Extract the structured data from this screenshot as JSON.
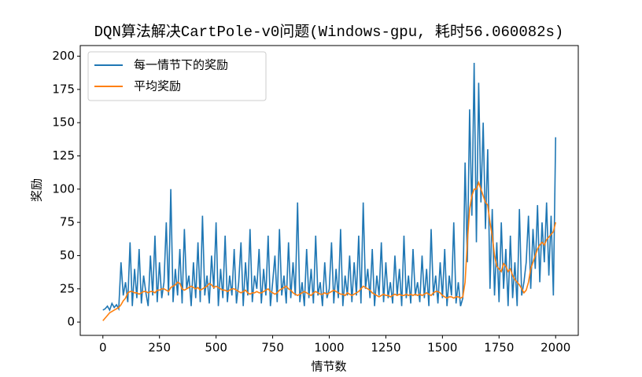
{
  "chart_data": {
    "type": "line",
    "title": "DQN算法解决CartPole-v0问题(Windows-gpu, 耗时56.060082s)",
    "xlabel": "情节数",
    "ylabel": "奖励",
    "x": [
      0,
      10,
      20,
      30,
      40,
      50,
      60,
      70,
      80,
      90,
      100,
      110,
      120,
      130,
      140,
      150,
      160,
      170,
      180,
      190,
      200,
      210,
      220,
      230,
      240,
      250,
      260,
      270,
      280,
      290,
      300,
      310,
      320,
      330,
      340,
      350,
      360,
      370,
      380,
      390,
      400,
      410,
      420,
      430,
      440,
      450,
      460,
      470,
      480,
      490,
      500,
      510,
      520,
      530,
      540,
      550,
      560,
      570,
      580,
      590,
      600,
      610,
      620,
      630,
      640,
      650,
      660,
      670,
      680,
      690,
      700,
      710,
      720,
      730,
      740,
      750,
      760,
      770,
      780,
      790,
      800,
      810,
      820,
      830,
      840,
      850,
      860,
      870,
      880,
      890,
      900,
      910,
      920,
      930,
      940,
      950,
      960,
      970,
      980,
      990,
      1000,
      1010,
      1020,
      1030,
      1040,
      1050,
      1060,
      1070,
      1080,
      1090,
      1100,
      1110,
      1120,
      1130,
      1140,
      1150,
      1160,
      1170,
      1180,
      1190,
      1200,
      1210,
      1220,
      1230,
      1240,
      1250,
      1260,
      1270,
      1280,
      1290,
      1300,
      1310,
      1320,
      1330,
      1340,
      1350,
      1360,
      1370,
      1380,
      1390,
      1400,
      1410,
      1420,
      1430,
      1440,
      1450,
      1460,
      1470,
      1480,
      1490,
      1500,
      1510,
      1520,
      1530,
      1540,
      1550,
      1560,
      1570,
      1580,
      1590,
      1600,
      1610,
      1620,
      1630,
      1640,
      1650,
      1660,
      1670,
      1680,
      1690,
      1700,
      1710,
      1720,
      1730,
      1740,
      1750,
      1760,
      1770,
      1780,
      1790,
      1800,
      1810,
      1820,
      1830,
      1840,
      1850,
      1860,
      1870,
      1880,
      1890,
      1900,
      1910,
      1920,
      1930,
      1940,
      1950,
      1960,
      1970,
      1980,
      1990,
      2000
    ],
    "series": [
      {
        "name": "每一情节下的奖励",
        "color": "#1f77b4",
        "values": [
          9,
          10,
          12,
          9,
          14,
          11,
          13,
          10,
          45,
          20,
          30,
          15,
          60,
          12,
          40,
          18,
          55,
          14,
          35,
          22,
          12,
          50,
          20,
          65,
          15,
          45,
          18,
          30,
          75,
          20,
          100,
          15,
          40,
          20,
          55,
          14,
          70,
          25,
          35,
          12,
          45,
          18,
          60,
          15,
          80,
          20,
          35,
          14,
          50,
          25,
          75,
          12,
          40,
          18,
          65,
          15,
          35,
          20,
          55,
          14,
          30,
          60,
          12,
          45,
          20,
          70,
          15,
          35,
          25,
          55,
          14,
          40,
          20,
          65,
          12,
          30,
          50,
          15,
          70,
          20,
          35,
          14,
          60,
          18,
          45,
          20,
          90,
          15,
          30,
          12,
          55,
          18,
          40,
          14,
          65,
          20,
          30,
          12,
          45,
          18,
          25,
          60,
          14,
          40,
          18,
          70,
          12,
          35,
          20,
          50,
          15,
          45,
          20,
          65,
          14,
          90,
          25,
          40,
          18,
          55,
          12,
          35,
          20,
          60,
          15,
          45,
          18,
          30,
          14,
          50,
          20,
          40,
          12,
          65,
          18,
          35,
          14,
          55,
          20,
          30,
          15,
          50,
          18,
          40,
          12,
          70,
          20,
          35,
          14,
          45,
          18,
          55,
          12,
          35,
          20,
          75,
          14,
          30,
          12,
          18,
          120,
          45,
          160,
          80,
          195,
          60,
          180,
          90,
          150,
          70,
          130,
          25,
          85,
          20,
          60,
          15,
          75,
          25,
          55,
          12,
          65,
          18,
          45,
          12,
          85,
          20,
          30,
          45,
          80,
          25,
          70,
          40,
          88,
          30,
          75,
          45,
          90,
          35,
          80,
          20,
          139
        ]
      },
      {
        "name": "平均奖励",
        "color": "#ff7f0e",
        "values": [
          1,
          3,
          5,
          7,
          8,
          9,
          10,
          11,
          13,
          16,
          18,
          22,
          23,
          23,
          22,
          22,
          21,
          22,
          23,
          23,
          22,
          23,
          23,
          22,
          24,
          24,
          25,
          25,
          24,
          23,
          26,
          27,
          28,
          30,
          29,
          25,
          24,
          25,
          26,
          27,
          26,
          25,
          26,
          24,
          25,
          26,
          27,
          29,
          28,
          26,
          27,
          26,
          25,
          24,
          24,
          23,
          24,
          25,
          25,
          24,
          23,
          22,
          23,
          24,
          22,
          21,
          22,
          22,
          23,
          22,
          22,
          23,
          24,
          25,
          23,
          22,
          21,
          22,
          24,
          25,
          26,
          27,
          25,
          24,
          22,
          21,
          20,
          21,
          22,
          23,
          22,
          21,
          20,
          22,
          23,
          22,
          21,
          21,
          22,
          21,
          22,
          23,
          24,
          23,
          22,
          21,
          21,
          20,
          22,
          21,
          20,
          21,
          22,
          23,
          25,
          27,
          26,
          25,
          24,
          22,
          21,
          20,
          19,
          20,
          21,
          20,
          20,
          19,
          20,
          21,
          20,
          21,
          20,
          20,
          21,
          20,
          21,
          20,
          21,
          20,
          21,
          20,
          21,
          22,
          21,
          20,
          22,
          23,
          23,
          22,
          20,
          19,
          18,
          19,
          19,
          18,
          19,
          19,
          18,
          19,
          30,
          60,
          85,
          95,
          100,
          100,
          105,
          100,
          95,
          90,
          88,
          75,
          65,
          50,
          42,
          40,
          38,
          44,
          42,
          38,
          40,
          35,
          32,
          30,
          28,
          25,
          22,
          24,
          30,
          40,
          45,
          50,
          55,
          58,
          60,
          58,
          62,
          64,
          66,
          68,
          75
        ]
      }
    ],
    "xlim": [
      -100,
      2100
    ],
    "ylim": [
      -10,
      208
    ],
    "xticks": [
      0,
      250,
      500,
      750,
      1000,
      1250,
      1500,
      1750,
      2000
    ],
    "yticks": [
      0,
      25,
      50,
      75,
      100,
      125,
      150,
      175,
      200
    ],
    "legend": "upper left"
  }
}
